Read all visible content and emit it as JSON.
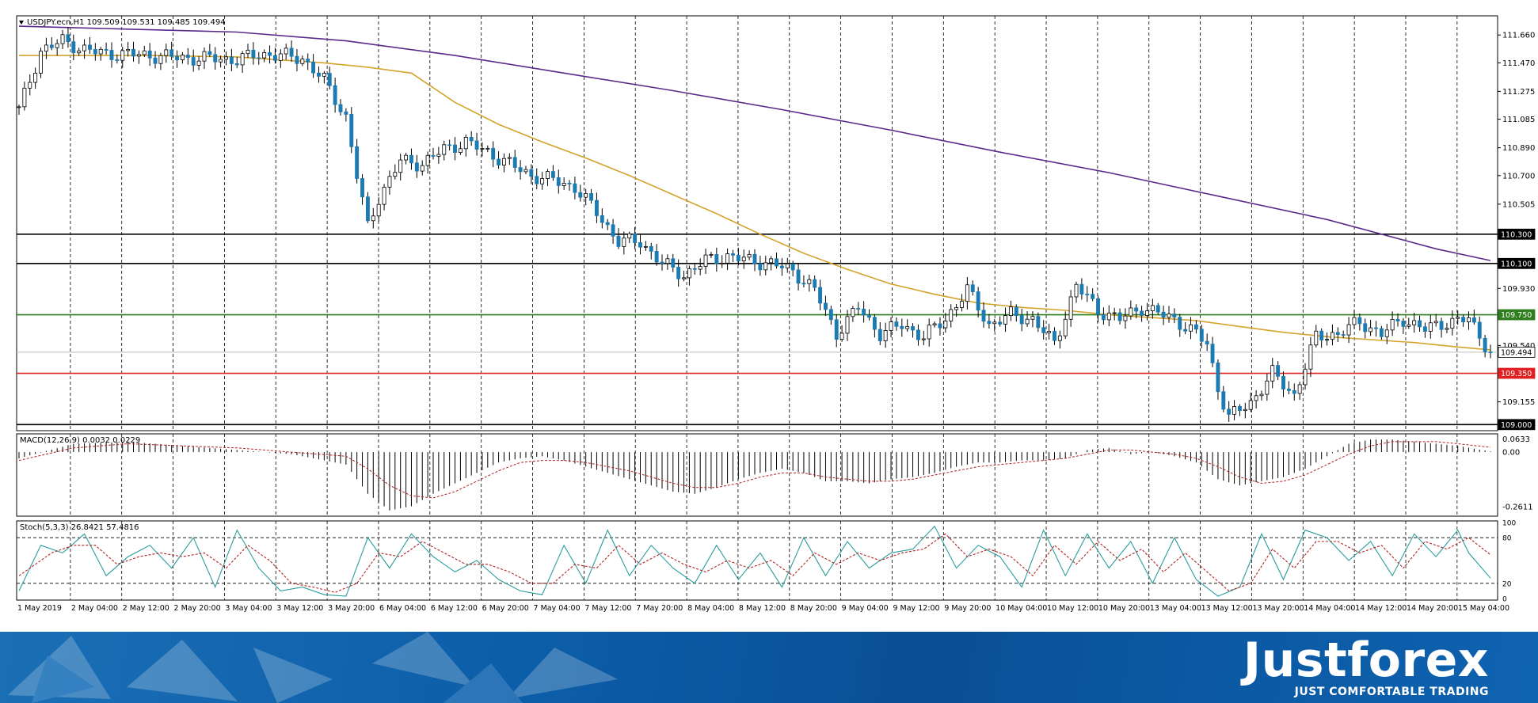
{
  "chart_data": [
    {
      "type": "candlestick",
      "title": "USDJPY.ecn,H1  109.509 109.531 109.485 109.494",
      "current_price": 109.494,
      "ylim": [
        108.98,
        111.78
      ],
      "price_ticks": [
        "111.660",
        "111.470",
        "111.275",
        "111.085",
        "110.890",
        "110.700",
        "110.505",
        "109.930",
        "109.540",
        "109.155"
      ],
      "x_tick_labels": [
        "1 May 2019",
        "2 May 04:00",
        "2 May 12:00",
        "2 May 20:00",
        "3 May 04:00",
        "3 May 12:00",
        "3 May 20:00",
        "6 May 04:00",
        "6 May 12:00",
        "6 May 20:00",
        "7 May 04:00",
        "7 May 12:00",
        "7 May 20:00",
        "8 May 04:00",
        "8 May 12:00",
        "8 May 20:00",
        "9 May 04:00",
        "9 May 12:00",
        "9 May 20:00",
        "10 May 04:00",
        "10 May 12:00",
        "10 May 20:00",
        "13 May 04:00",
        "13 May 12:00",
        "13 May 20:00",
        "14 May 04:00",
        "14 May 12:00",
        "14 May 20:00",
        "15 May 04:00"
      ],
      "horizontal_levels": [
        {
          "label": "110.300",
          "color": "#000000"
        },
        {
          "label": "110.100",
          "color": "#000000"
        },
        {
          "label": "109.750",
          "color": "#2e7d1e"
        },
        {
          "label": "109.494",
          "color": "#bbbbbb"
        },
        {
          "label": "109.350",
          "color": "#e02020"
        },
        {
          "label": "109.000",
          "color": "#000000"
        }
      ],
      "bull_color": "#ffffff",
      "bear_color": "#1b7bb3",
      "moving_averages": [
        {
          "color": "#d4a32c",
          "x": [
            0,
            24,
            40,
            48,
            56,
            64,
            72,
            80,
            88,
            96,
            104,
            112,
            120,
            128,
            136,
            144,
            152,
            160,
            168,
            176,
            184,
            192,
            200,
            208,
            216,
            224,
            232,
            240,
            248,
            256,
            264,
            270
          ],
          "y": [
            111.52,
            111.52,
            111.51,
            111.49,
            111.47,
            111.44,
            111.4,
            111.2,
            111.05,
            110.93,
            110.82,
            110.7,
            110.57,
            110.44,
            110.3,
            110.17,
            110.06,
            109.96,
            109.89,
            109.83,
            109.8,
            109.78,
            109.75,
            109.73,
            109.71,
            109.67,
            109.63,
            109.6,
            109.58,
            109.56,
            109.53,
            109.51
          ]
        },
        {
          "color": "#5a2a8a",
          "x": [
            0,
            20,
            40,
            60,
            80,
            100,
            120,
            140,
            160,
            180,
            200,
            220,
            240,
            260,
            270
          ],
          "y": [
            111.72,
            111.7,
            111.68,
            111.62,
            111.52,
            111.4,
            111.28,
            111.15,
            111.01,
            110.86,
            110.72,
            110.56,
            110.4,
            110.2,
            110.12
          ]
        }
      ],
      "bars": 271,
      "close_points": {
        "x": [
          0,
          4,
          8,
          12,
          16,
          20,
          24,
          28,
          32,
          36,
          40,
          44,
          48,
          52,
          56,
          60,
          62,
          64,
          66,
          70,
          74,
          78,
          82,
          86,
          90,
          94,
          98,
          102,
          106,
          110,
          114,
          118,
          122,
          126,
          130,
          134,
          138,
          142,
          146,
          150,
          154,
          158,
          162,
          166,
          170,
          174,
          178,
          182,
          186,
          190,
          194,
          198,
          202,
          206,
          212,
          216,
          218,
          220,
          222,
          226,
          230,
          234,
          238,
          242,
          246,
          250,
          254,
          258,
          262,
          266,
          270
        ],
        "y": [
          111.15,
          111.55,
          111.62,
          111.56,
          111.53,
          111.53,
          111.52,
          111.51,
          111.5,
          111.5,
          111.49,
          111.53,
          111.52,
          111.5,
          111.35,
          111.1,
          110.7,
          110.35,
          110.55,
          110.8,
          110.78,
          110.88,
          110.93,
          110.86,
          110.78,
          110.7,
          110.67,
          110.62,
          110.45,
          110.25,
          110.25,
          110.1,
          110.02,
          110.12,
          110.15,
          110.12,
          110.1,
          110.05,
          109.92,
          109.62,
          109.8,
          109.62,
          109.68,
          109.6,
          109.72,
          109.92,
          109.68,
          109.75,
          109.72,
          109.55,
          109.95,
          109.78,
          109.72,
          109.8,
          109.72,
          109.62,
          109.55,
          109.25,
          109.05,
          109.15,
          109.35,
          109.2,
          109.6,
          109.62,
          109.7,
          109.62,
          109.72,
          109.65,
          109.7,
          109.72,
          109.494
        ]
      }
    },
    {
      "type": "histogram",
      "title": "MACD(12,26,9) 0.0032 0.0229",
      "ylim": [
        -0.3,
        0.08
      ],
      "tick_labels": [
        "0.0633",
        "0.00",
        "-0.2611"
      ],
      "histogram_color": "#000000",
      "signal_color": "#b22222",
      "macd": {
        "x": [
          0,
          10,
          20,
          30,
          40,
          50,
          60,
          64,
          68,
          72,
          76,
          80,
          84,
          88,
          92,
          96,
          100,
          104,
          108,
          112,
          116,
          120,
          124,
          128,
          132,
          136,
          140,
          144,
          148,
          152,
          156,
          160,
          164,
          168,
          172,
          176,
          180,
          184,
          188,
          192,
          196,
          200,
          204,
          208,
          212,
          216,
          220,
          224,
          228,
          232,
          236,
          240,
          244,
          248,
          252,
          256,
          260,
          264,
          270
        ],
        "y": [
          -0.03,
          0.04,
          0.05,
          0.03,
          0.01,
          -0.01,
          -0.06,
          -0.2,
          -0.28,
          -0.26,
          -0.2,
          -0.15,
          -0.1,
          -0.05,
          -0.03,
          -0.02,
          -0.04,
          -0.07,
          -0.1,
          -0.13,
          -0.16,
          -0.19,
          -0.2,
          -0.17,
          -0.13,
          -0.1,
          -0.08,
          -0.1,
          -0.14,
          -0.14,
          -0.15,
          -0.13,
          -0.12,
          -0.1,
          -0.07,
          -0.05,
          -0.05,
          -0.04,
          -0.04,
          -0.03,
          0.01,
          0.02,
          -0.01,
          0.0,
          -0.02,
          -0.05,
          -0.13,
          -0.16,
          -0.14,
          -0.12,
          -0.08,
          -0.02,
          0.04,
          0.06,
          0.06,
          0.05,
          0.04,
          0.03,
          0.003
        ]
      },
      "signal": {
        "x": [
          0,
          10,
          20,
          30,
          40,
          50,
          60,
          64,
          68,
          72,
          76,
          80,
          84,
          88,
          92,
          96,
          100,
          104,
          108,
          112,
          116,
          120,
          124,
          128,
          132,
          136,
          140,
          144,
          148,
          152,
          156,
          160,
          164,
          168,
          172,
          176,
          180,
          184,
          188,
          192,
          196,
          200,
          204,
          208,
          212,
          216,
          220,
          224,
          228,
          232,
          236,
          240,
          244,
          248,
          252,
          256,
          260,
          264,
          270
        ],
        "y": [
          -0.04,
          0.02,
          0.04,
          0.03,
          0.02,
          0.0,
          -0.02,
          -0.08,
          -0.16,
          -0.21,
          -0.22,
          -0.19,
          -0.14,
          -0.09,
          -0.05,
          -0.04,
          -0.04,
          -0.05,
          -0.07,
          -0.09,
          -0.12,
          -0.15,
          -0.17,
          -0.17,
          -0.15,
          -0.12,
          -0.1,
          -0.1,
          -0.12,
          -0.13,
          -0.14,
          -0.14,
          -0.13,
          -0.11,
          -0.09,
          -0.07,
          -0.06,
          -0.05,
          -0.04,
          -0.03,
          -0.01,
          0.01,
          0.01,
          0.0,
          -0.01,
          -0.03,
          -0.07,
          -0.12,
          -0.15,
          -0.14,
          -0.11,
          -0.06,
          -0.01,
          0.03,
          0.05,
          0.05,
          0.05,
          0.04,
          0.023
        ]
      }
    },
    {
      "type": "line",
      "title": "Stoch(5,3,3) 26.8421 57.4816",
      "ylim": [
        0,
        100
      ],
      "tick_labels": [
        "100",
        "80",
        "20",
        "0"
      ],
      "levels": [
        80,
        20
      ],
      "series": [
        {
          "color": "#2a9d9d",
          "x": [
            0,
            4,
            8,
            12,
            16,
            20,
            24,
            28,
            32,
            36,
            40,
            44,
            48,
            52,
            56,
            60,
            64,
            68,
            72,
            76,
            80,
            84,
            88,
            92,
            96,
            100,
            104,
            108,
            112,
            116,
            120,
            124,
            128,
            132,
            136,
            140,
            144,
            148,
            152,
            156,
            160,
            164,
            168,
            172,
            176,
            180,
            184,
            188,
            192,
            196,
            200,
            204,
            208,
            212,
            216,
            220,
            224,
            228,
            232,
            236,
            240,
            244,
            248,
            252,
            256,
            260,
            264,
            266,
            270
          ],
          "y": [
            10,
            70,
            60,
            85,
            30,
            55,
            70,
            40,
            80,
            15,
            90,
            40,
            10,
            15,
            5,
            3,
            80,
            40,
            85,
            55,
            35,
            50,
            25,
            10,
            5,
            70,
            20,
            90,
            30,
            70,
            40,
            20,
            70,
            25,
            60,
            15,
            80,
            30,
            75,
            40,
            60,
            65,
            95,
            40,
            70,
            55,
            15,
            90,
            30,
            85,
            40,
            75,
            20,
            80,
            25,
            3,
            15,
            85,
            25,
            90,
            80,
            50,
            75,
            30,
            85,
            55,
            90,
            60,
            26.8
          ]
        },
        {
          "color": "#b22222",
          "x": [
            0,
            6,
            10,
            14,
            18,
            22,
            26,
            30,
            34,
            38,
            42,
            46,
            50,
            54,
            58,
            62,
            66,
            70,
            74,
            78,
            82,
            86,
            90,
            94,
            98,
            102,
            106,
            110,
            114,
            118,
            122,
            126,
            130,
            134,
            138,
            142,
            146,
            150,
            154,
            158,
            162,
            166,
            170,
            174,
            178,
            182,
            186,
            190,
            194,
            198,
            202,
            206,
            210,
            214,
            218,
            222,
            226,
            230,
            234,
            238,
            242,
            246,
            250,
            254,
            258,
            262,
            266,
            270
          ],
          "y": [
            30,
            60,
            70,
            70,
            45,
            55,
            60,
            55,
            60,
            40,
            70,
            50,
            20,
            15,
            8,
            20,
            60,
            55,
            75,
            60,
            45,
            45,
            35,
            20,
            20,
            45,
            40,
            70,
            45,
            60,
            45,
            35,
            50,
            40,
            50,
            30,
            60,
            45,
            60,
            50,
            60,
            65,
            85,
            55,
            65,
            55,
            30,
            70,
            45,
            75,
            50,
            65,
            35,
            60,
            35,
            10,
            20,
            65,
            40,
            75,
            75,
            60,
            70,
            40,
            75,
            65,
            80,
            57.5
          ]
        }
      ]
    }
  ],
  "banner": {
    "brand": "Justforex",
    "tagline": "JUST COMFORTABLE TRADING"
  }
}
